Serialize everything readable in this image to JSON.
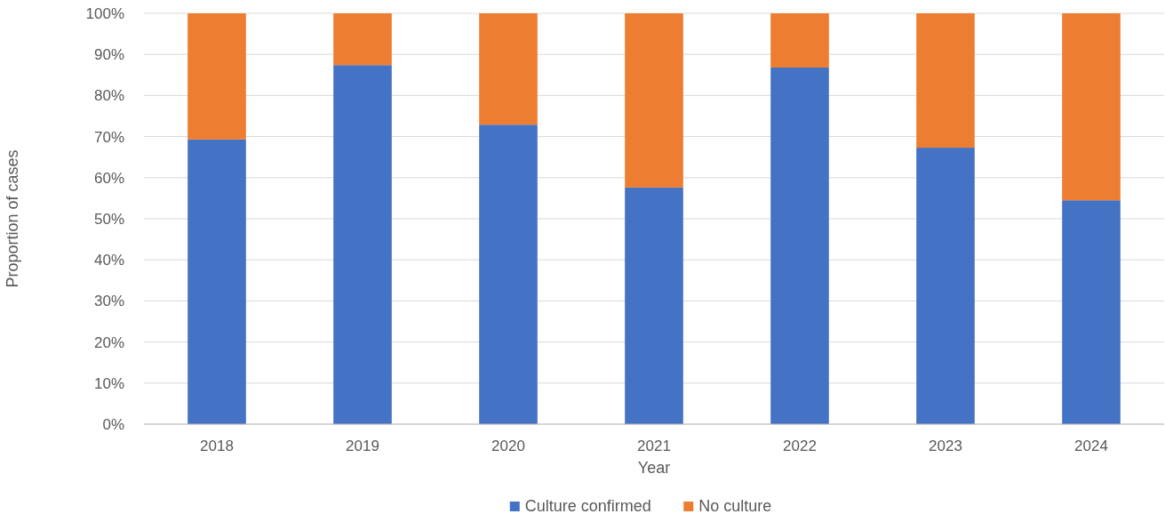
{
  "chart_data": {
    "type": "bar",
    "stacked": true,
    "xlabel": "Year",
    "ylabel": "Proportion of cases",
    "categories": [
      "2018",
      "2019",
      "2020",
      "2021",
      "2022",
      "2023",
      "2024"
    ],
    "series": [
      {
        "name": "Culture confirmed",
        "color": "#4472c4",
        "values": [
          69.3,
          87.4,
          72.9,
          57.6,
          86.8,
          67.3,
          54.5
        ]
      },
      {
        "name": "No culture",
        "color": "#ed7d31",
        "values": [
          30.7,
          12.6,
          27.1,
          42.4,
          13.2,
          32.7,
          45.5
        ]
      }
    ],
    "ylim": [
      0,
      100
    ],
    "yticks": [
      {
        "value": 0,
        "label": "0%"
      },
      {
        "value": 10,
        "label": "10%"
      },
      {
        "value": 20,
        "label": "20%"
      },
      {
        "value": 30,
        "label": "30%"
      },
      {
        "value": 40,
        "label": "40%"
      },
      {
        "value": 50,
        "label": "50%"
      },
      {
        "value": 60,
        "label": "60%"
      },
      {
        "value": 70,
        "label": "70%"
      },
      {
        "value": 80,
        "label": "80%"
      },
      {
        "value": 90,
        "label": "90%"
      },
      {
        "value": 100,
        "label": "100%"
      }
    ],
    "grid": "y",
    "legend": "bottom"
  }
}
